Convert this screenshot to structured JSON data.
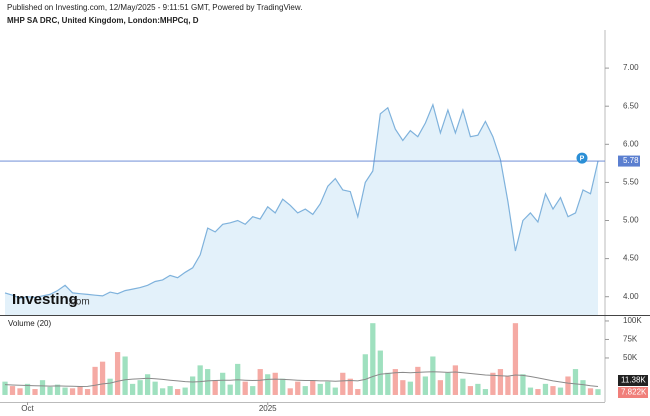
{
  "header": {
    "published": "Published on Investing.com, 12/May/2025 - 9:11:51 GMT, Powered by TradingView.",
    "symbol": "MHP SA DRC, United Kingdom, London:MHPCq, D"
  },
  "logo": {
    "name": "Investing",
    "suffix": ".com"
  },
  "chart_data": [
    {
      "type": "area",
      "line_color": "#7fb2dc",
      "fill_color": "#e3f1fa",
      "last_line_color": "#5b7fd0",
      "ylim": [
        3.76,
        7.5
      ],
      "yticks": [
        {
          "value": 4,
          "label": "4.00"
        },
        {
          "value": 4.5,
          "label": "4.50"
        },
        {
          "value": 5,
          "label": "5.00"
        },
        {
          "value": 5.5,
          "label": "5.50"
        },
        {
          "value": 6,
          "label": "6.00"
        },
        {
          "value": 6.5,
          "label": "6.50"
        },
        {
          "value": 7,
          "label": "7.00"
        }
      ],
      "values": [
        4.05,
        4.02,
        3.98,
        4.0,
        3.99,
        4.01,
        4.03,
        4.08,
        4.15,
        4.05,
        4.04,
        4.03,
        4.02,
        4.01,
        4.06,
        4.04,
        4.08,
        4.1,
        4.12,
        4.15,
        4.2,
        4.22,
        4.28,
        4.25,
        4.32,
        4.38,
        4.55,
        4.9,
        4.85,
        4.95,
        4.97,
        5.0,
        4.95,
        5.05,
        5.02,
        5.18,
        5.1,
        5.28,
        5.2,
        5.1,
        5.15,
        5.08,
        5.22,
        5.45,
        5.55,
        5.4,
        5.38,
        5.05,
        5.5,
        5.65,
        6.4,
        6.48,
        6.2,
        6.05,
        6.18,
        6.1,
        6.28,
        6.52,
        6.15,
        6.45,
        6.15,
        6.45,
        6.1,
        6.12,
        6.3,
        6.1,
        5.8,
        5.25,
        4.6,
        5.0,
        5.1,
        4.98,
        5.35,
        5.15,
        5.3,
        5.05,
        5.1,
        5.4,
        5.35,
        5.78
      ]
    },
    {
      "type": "bar",
      "title": "Volume (20)",
      "up_color": "#9fe0bf",
      "down_color": "#f5aaa4",
      "categories": [
        null,
        null,
        null,
        "Oct",
        null,
        null,
        null,
        null,
        null,
        null,
        null,
        null,
        null,
        null,
        null,
        null,
        null,
        null,
        null,
        null,
        null,
        null,
        null,
        null,
        null,
        null,
        null,
        null,
        null,
        null,
        null,
        null,
        null,
        null,
        null,
        "2025",
        null,
        null,
        null,
        null,
        null,
        null,
        null,
        null,
        null,
        null,
        null,
        null,
        null,
        null,
        null,
        null,
        null,
        null,
        null,
        null,
        null,
        null,
        null,
        null,
        null,
        null,
        null,
        null,
        null,
        null,
        null,
        null,
        null,
        null,
        null,
        null,
        null,
        null,
        null,
        null,
        null,
        null,
        null,
        null
      ],
      "ylim": [
        -6800,
        104000
      ],
      "yticks": [
        {
          "value": 50000,
          "label": "50K"
        },
        {
          "value": 75000,
          "label": "75K"
        },
        {
          "value": 100000,
          "label": "100K"
        }
      ],
      "series": [
        {
          "name": "Volume",
          "last_value_label": "7.822K",
          "label_color": "#f07f7a",
          "values": [
            18000,
            12000,
            9000,
            15000,
            8000,
            20000,
            11000,
            14000,
            10000,
            9000,
            12000,
            8000,
            38000,
            45000,
            22000,
            58000,
            52000,
            15000,
            20000,
            28000,
            18000,
            9000,
            12000,
            8000,
            10000,
            25000,
            40000,
            35000,
            20000,
            30000,
            14000,
            42000,
            18000,
            12000,
            35000,
            28000,
            30000,
            22000,
            9000,
            18000,
            12000,
            20000,
            15000,
            18000,
            10000,
            30000,
            22000,
            8000,
            55000,
            97000,
            60000,
            30000,
            35000,
            20000,
            18000,
            38000,
            25000,
            52000,
            20000,
            30000,
            40000,
            22000,
            12000,
            15000,
            8000,
            30000,
            35000,
            25000,
            97000,
            28000,
            10000,
            8000,
            15000,
            12000,
            10000,
            25000,
            35000,
            20000,
            9000,
            7822
          ]
        },
        {
          "name": "MA",
          "last_value_label": "11.38K",
          "color": "#8a8a8a",
          "label_color": "#222",
          "values": [
            14000,
            13500,
            13000,
            12800,
            12500,
            12300,
            12000,
            12200,
            12000,
            11800,
            11500,
            11600,
            13000,
            15000,
            16000,
            18500,
            20500,
            21500,
            22000,
            22500,
            22000,
            21000,
            20000,
            19000,
            18000,
            17500,
            18000,
            19000,
            19500,
            20000,
            20000,
            20500,
            20000,
            19500,
            20000,
            21000,
            21500,
            21000,
            20500,
            20000,
            19500,
            19500,
            19000,
            19000,
            18500,
            19000,
            19500,
            19000,
            21000,
            25000,
            28000,
            29000,
            30000,
            30500,
            30000,
            30500,
            31000,
            31500,
            31000,
            30500,
            31000,
            30000,
            29000,
            28000,
            27000,
            26500,
            26000,
            25500,
            27000,
            26500,
            25000,
            23000,
            21000,
            19000,
            17500,
            16000,
            15000,
            14000,
            12500,
            11380
          ]
        }
      ]
    }
  ]
}
